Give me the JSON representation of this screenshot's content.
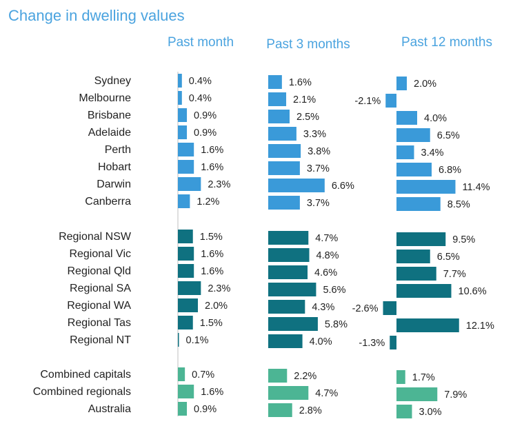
{
  "chart_data": {
    "type": "bar",
    "title": "Change in dwelling values",
    "colors": {
      "capitals": "#3a9ad9",
      "regionals": "#0f7180",
      "combined": "#4cb594",
      "title": "#4aa3df"
    },
    "panels": [
      {
        "name": "Past month"
      },
      {
        "name": "Past 3 months"
      },
      {
        "name": "Past 12 months"
      }
    ],
    "groups": [
      {
        "name": "capitals",
        "rows": [
          {
            "label": "Sydney",
            "values": [
              0.4,
              1.6,
              2.0
            ],
            "texts": [
              "0.4%",
              "1.6%",
              "2.0%"
            ]
          },
          {
            "label": "Melbourne",
            "values": [
              0.4,
              2.1,
              -2.1
            ],
            "texts": [
              "0.4%",
              "2.1%",
              "-2.1%"
            ]
          },
          {
            "label": "Brisbane",
            "values": [
              0.9,
              2.5,
              4.0
            ],
            "texts": [
              "0.9%",
              "2.5%",
              "4.0%"
            ]
          },
          {
            "label": "Adelaide",
            "values": [
              0.9,
              3.3,
              6.5
            ],
            "texts": [
              "0.9%",
              "3.3%",
              "6.5%"
            ]
          },
          {
            "label": "Perth",
            "values": [
              1.6,
              3.8,
              3.4
            ],
            "texts": [
              "1.6%",
              "3.8%",
              "3.4%"
            ]
          },
          {
            "label": "Hobart",
            "values": [
              1.6,
              3.7,
              6.8
            ],
            "texts": [
              "1.6%",
              "3.7%",
              "6.8%"
            ]
          },
          {
            "label": "Darwin",
            "values": [
              2.3,
              6.6,
              11.4
            ],
            "texts": [
              "2.3%",
              "6.6%",
              "11.4%"
            ]
          },
          {
            "label": "Canberra",
            "values": [
              1.2,
              3.7,
              8.5
            ],
            "texts": [
              "1.2%",
              "3.7%",
              "8.5%"
            ]
          }
        ]
      },
      {
        "name": "regionals",
        "rows": [
          {
            "label": "Regional NSW",
            "values": [
              1.5,
              4.7,
              9.5
            ],
            "texts": [
              "1.5%",
              "4.7%",
              "9.5%"
            ]
          },
          {
            "label": "Regional Vic",
            "values": [
              1.6,
              4.8,
              6.5
            ],
            "texts": [
              "1.6%",
              "4.8%",
              "6.5%"
            ]
          },
          {
            "label": "Regional Qld",
            "values": [
              1.6,
              4.6,
              7.7
            ],
            "texts": [
              "1.6%",
              "4.6%",
              "7.7%"
            ]
          },
          {
            "label": "Regional SA",
            "values": [
              2.3,
              5.6,
              10.6
            ],
            "texts": [
              "2.3%",
              "5.6%",
              "10.6%"
            ]
          },
          {
            "label": "Regional WA",
            "values": [
              2.0,
              4.3,
              -2.6
            ],
            "texts": [
              "2.0%",
              "4.3%",
              "-2.6%"
            ]
          },
          {
            "label": "Regional Tas",
            "values": [
              1.5,
              5.8,
              12.1
            ],
            "texts": [
              "1.5%",
              "5.8%",
              "12.1%"
            ]
          },
          {
            "label": "Regional NT",
            "values": [
              0.1,
              4.0,
              -1.3
            ],
            "texts": [
              "0.1%",
              "4.0%",
              "-1.3%"
            ]
          }
        ]
      },
      {
        "name": "combined",
        "rows": [
          {
            "label": "Combined capitals",
            "values": [
              0.7,
              2.2,
              1.7
            ],
            "texts": [
              "0.7%",
              "2.2%",
              "1.7%"
            ]
          },
          {
            "label": "Combined regionals",
            "values": [
              1.6,
              4.7,
              7.9
            ],
            "texts": [
              "1.6%",
              "4.7%",
              "7.9%"
            ]
          },
          {
            "label": "Australia",
            "values": [
              0.9,
              2.8,
              3.0
            ],
            "texts": [
              "0.9%",
              "2.8%",
              "3.0%"
            ]
          }
        ]
      }
    ]
  }
}
